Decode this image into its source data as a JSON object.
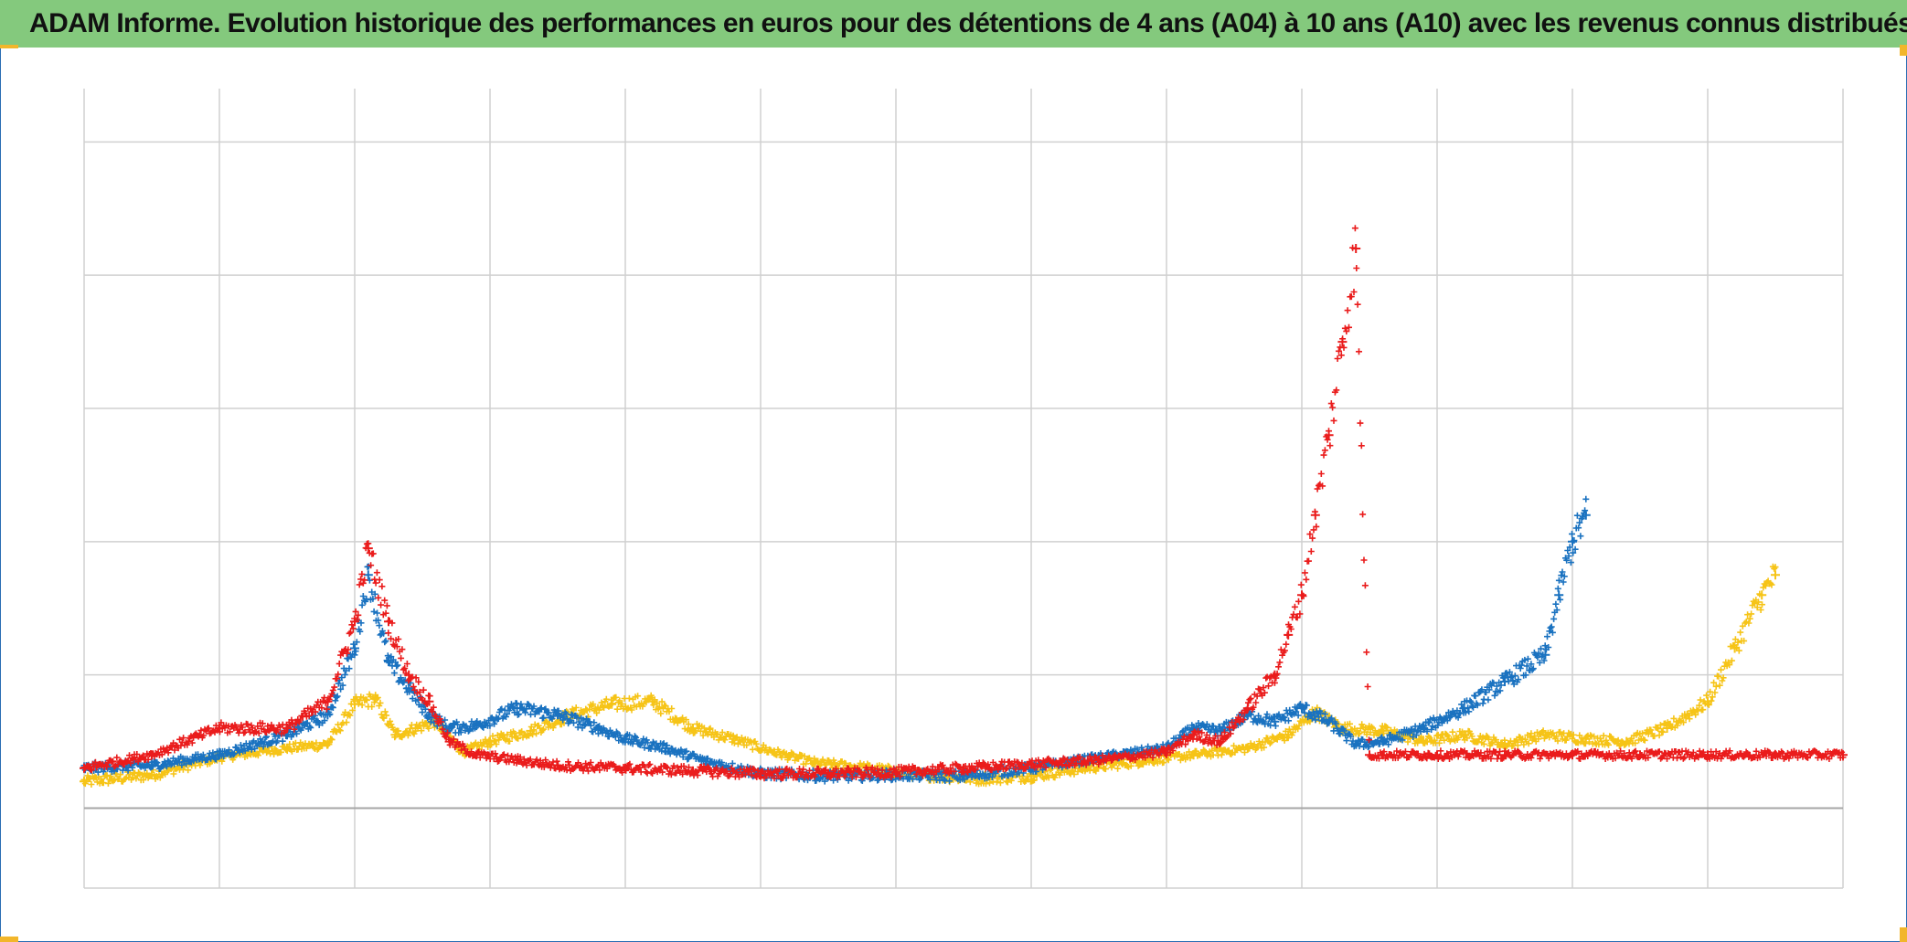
{
  "title": "ADAM Informe. Evolution historique des performances en euros pour des détentions de 4 ans (A04) à 10 ans (A10) avec les revenus connus distribués",
  "colors": {
    "title_bg": "#84c97d",
    "grid": "#d0d0d0",
    "zero_line": "#a6a6a6",
    "corner": "#f2b62b"
  },
  "chart_data": {
    "type": "scatter",
    "title": "ADAM Informe. Evolution historique des performances en euros pour des détentions de 4 ans (A04) à 10 ans (A10) avec les revenus connus distribués",
    "xlabel": "",
    "ylabel": "",
    "xlim": [
      0,
      13
    ],
    "ylim": [
      -0.6,
      5.4
    ],
    "x_gridlines": 13,
    "y_gridlines": [
      -0.6,
      0,
      1,
      2,
      3,
      4,
      5
    ],
    "grid": true,
    "legend": "none",
    "marker": "+",
    "series": [
      {
        "color": "#f6c417",
        "x": [
          0,
          0.5,
          1,
          1.5,
          1.8,
          2,
          2.15,
          2.3,
          2.45,
          2.6,
          2.8,
          3,
          3.3,
          3.6,
          3.9,
          4.2,
          4.5,
          4.8,
          5.1,
          5.4,
          5.8,
          6.2,
          6.6,
          7,
          7.4,
          7.8,
          8.2,
          8.6,
          8.9,
          9.1,
          9.3,
          9.6,
          9.9,
          10.2,
          10.5,
          10.8,
          11.1,
          11.4,
          11.7,
          12,
          12.2,
          12.4,
          12.5
        ],
        "y": [
          0.2,
          0.25,
          0.38,
          0.45,
          0.48,
          0.78,
          0.82,
          0.55,
          0.6,
          0.65,
          0.42,
          0.5,
          0.58,
          0.7,
          0.78,
          0.8,
          0.6,
          0.52,
          0.42,
          0.34,
          0.3,
          0.25,
          0.22,
          0.24,
          0.3,
          0.35,
          0.4,
          0.45,
          0.55,
          0.72,
          0.6,
          0.58,
          0.5,
          0.55,
          0.48,
          0.55,
          0.52,
          0.5,
          0.6,
          0.8,
          1.2,
          1.6,
          1.75
        ]
      },
      {
        "color": "#1a72c0",
        "x": [
          0,
          0.5,
          1,
          1.5,
          1.8,
          2,
          2.1,
          2.25,
          2.4,
          2.55,
          2.7,
          2.9,
          3.2,
          3.5,
          3.8,
          4,
          4.3,
          4.6,
          5,
          5.5,
          6,
          6.5,
          7,
          7.5,
          8,
          8.2,
          8.4,
          8.6,
          8.8,
          9,
          9.2,
          9.4,
          9.6,
          9.9,
          10.2,
          10.5,
          10.8,
          10.9,
          11,
          11.1
        ],
        "y": [
          0.3,
          0.32,
          0.4,
          0.55,
          0.7,
          1.2,
          1.75,
          1.1,
          0.9,
          0.7,
          0.6,
          0.62,
          0.75,
          0.7,
          0.6,
          0.52,
          0.45,
          0.35,
          0.26,
          0.24,
          0.25,
          0.24,
          0.3,
          0.38,
          0.45,
          0.6,
          0.58,
          0.7,
          0.65,
          0.75,
          0.65,
          0.48,
          0.5,
          0.6,
          0.75,
          0.95,
          1.15,
          1.6,
          2.0,
          2.2
        ]
      },
      {
        "color": "#ea1c1c",
        "x": [
          0,
          0.5,
          1,
          1.5,
          1.8,
          2,
          2.1,
          2.25,
          2.4,
          2.55,
          2.7,
          2.9,
          3.2,
          3.5,
          4,
          4.5,
          5,
          5.5,
          6,
          6.5,
          7,
          7.5,
          8,
          8.2,
          8.4,
          8.6,
          8.8,
          8.9,
          9,
          9.1,
          9.2,
          9.3,
          9.4,
          9.5,
          9.6,
          10,
          10.5,
          11,
          11.5,
          12,
          12.5,
          13
        ],
        "y": [
          0.3,
          0.4,
          0.6,
          0.6,
          0.8,
          1.4,
          1.95,
          1.4,
          1.0,
          0.8,
          0.5,
          0.4,
          0.36,
          0.32,
          0.3,
          0.28,
          0.26,
          0.26,
          0.27,
          0.3,
          0.33,
          0.36,
          0.42,
          0.55,
          0.5,
          0.75,
          1.0,
          1.3,
          1.6,
          2.2,
          2.8,
          3.5,
          4.2,
          0.4,
          0.4,
          0.4,
          0.4,
          0.4,
          0.4,
          0.4,
          0.4,
          0.4
        ]
      }
    ]
  }
}
